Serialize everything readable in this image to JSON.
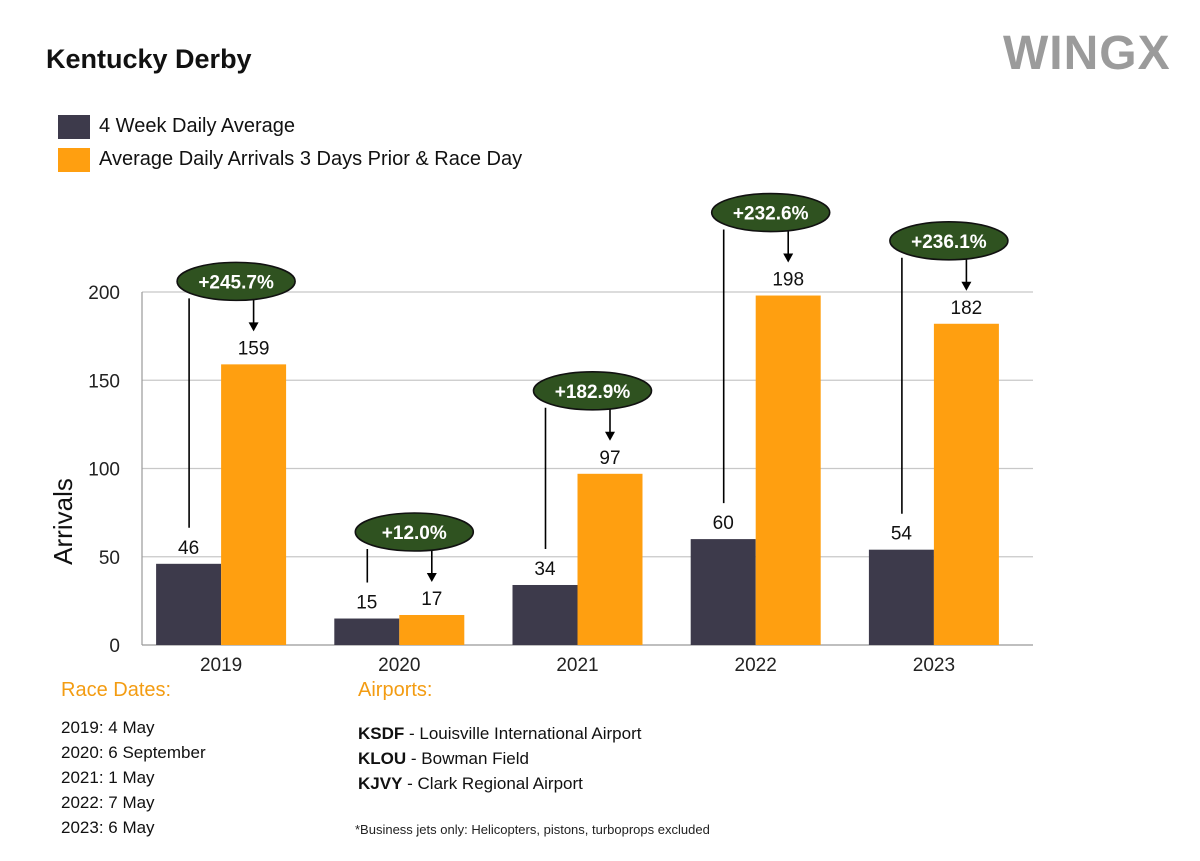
{
  "header": {
    "title": "Kentucky Derby",
    "logo_text": "WINGX"
  },
  "colors": {
    "dark": "#3d3a4b",
    "orange": "#ff9f10",
    "bubble": "#2f5220",
    "grid": "#c8c8c8"
  },
  "chart_data": {
    "type": "bar",
    "title": "Kentucky Derby",
    "ylabel": "Arrivals",
    "xlabel": "",
    "ylim": [
      0,
      200
    ],
    "yticks": [
      0,
      50,
      100,
      150,
      200
    ],
    "categories": [
      "2019",
      "2020",
      "2021",
      "2022",
      "2023"
    ],
    "series": [
      {
        "name": "4 Week Daily Average",
        "color": "#3d3a4b",
        "values": [
          46,
          15,
          34,
          60,
          54
        ]
      },
      {
        "name": "Average Daily Arrivals 3 Days Prior & Race Day",
        "color": "#ff9f10",
        "values": [
          159,
          17,
          97,
          198,
          182
        ]
      }
    ],
    "annotations": [
      "+245.7%",
      "+12.0%",
      "+182.9%",
      "+232.6%",
      "+236.1%"
    ],
    "grid": true,
    "legend": "top-left"
  },
  "race_dates": {
    "title": "Race Dates:",
    "items": [
      "2019: 4 May",
      "2020: 6 September",
      "2021: 1 May",
      "2022: 7 May",
      "2023: 6 May"
    ]
  },
  "airports": {
    "title": "Airports:",
    "items": [
      {
        "code": "KSDF",
        "name": " - Louisville International Airport"
      },
      {
        "code": "KLOU",
        "name": " - Bowman Field"
      },
      {
        "code": "KJVY",
        "name": " - Clark Regional Airport"
      }
    ]
  },
  "footnote": "*Business jets only: Helicopters, pistons, turboprops excluded"
}
